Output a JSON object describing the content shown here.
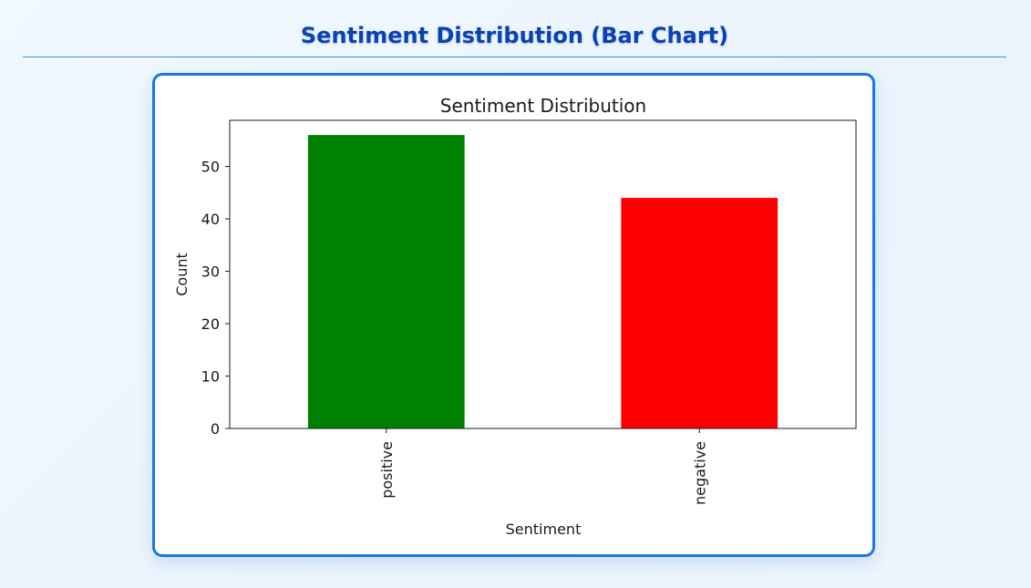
{
  "page": {
    "title": "Sentiment Distribution (Bar Chart)"
  },
  "colors": {
    "title": "#0a41b3",
    "card_border": "#1a78e0",
    "divider": "#3d8fe6"
  },
  "chart_data": {
    "type": "bar",
    "title": "Sentiment Distribution",
    "xlabel": "Sentiment",
    "ylabel": "Count",
    "categories": [
      "positive",
      "negative"
    ],
    "values": [
      56,
      44
    ],
    "bar_colors": [
      "#008000",
      "#ff0000"
    ],
    "ylim": [
      0,
      58.8
    ],
    "yticks": [
      0,
      10,
      20,
      30,
      40,
      50
    ],
    "ytick_labels": [
      "0",
      "10",
      "20",
      "30",
      "40",
      "50"
    ],
    "grid": false,
    "legend": "none"
  }
}
